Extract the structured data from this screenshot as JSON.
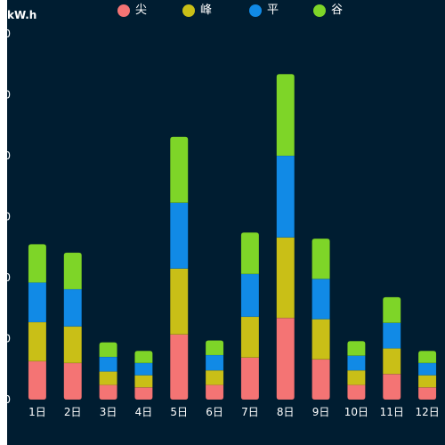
{
  "chart_data": {
    "type": "bar",
    "stacked": true,
    "ylabel": "kW.h",
    "ylim": [
      0,
      60
    ],
    "y_tick_labels_visible": [
      "0",
      "0",
      "0",
      "0",
      "0",
      "0",
      "0"
    ],
    "categories": [
      "1日",
      "2日",
      "3日",
      "4日",
      "5日",
      "6日",
      "7日",
      "8日",
      "9日",
      "10日",
      "11日",
      "12日"
    ],
    "series": [
      {
        "name": "尖",
        "color": "#f47474",
        "values": [
          6.3,
          6.0,
          2.4,
          2.0,
          10.7,
          2.4,
          6.9,
          13.4,
          6.6,
          2.4,
          4.2,
          2.0
        ]
      },
      {
        "name": "峰",
        "color": "#c9bf17",
        "values": [
          6.4,
          6.0,
          2.2,
          2.0,
          10.8,
          2.4,
          6.7,
          13.2,
          6.6,
          2.4,
          4.2,
          2.0
        ]
      },
      {
        "name": "平",
        "color": "#118ae6",
        "values": [
          6.5,
          6.1,
          2.4,
          2.0,
          10.8,
          2.5,
          7.0,
          13.4,
          6.6,
          2.4,
          4.2,
          2.0
        ]
      },
      {
        "name": "谷",
        "color": "#7ed528",
        "values": [
          6.3,
          6.0,
          2.4,
          2.0,
          10.8,
          2.4,
          6.8,
          13.4,
          6.6,
          2.4,
          4.2,
          2.0
        ]
      }
    ],
    "legend_position": "top-center",
    "grid": false
  }
}
